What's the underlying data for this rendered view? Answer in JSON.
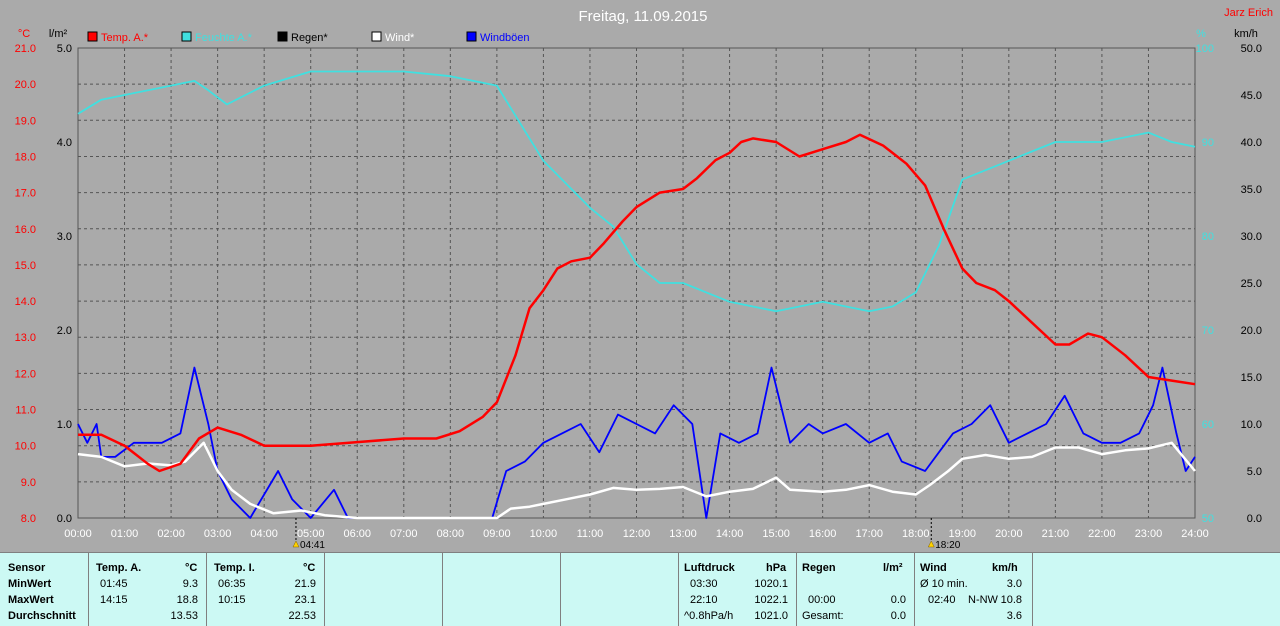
{
  "title": "Freitag, 11.09.2015",
  "author": "Jarz Erich",
  "colors": {
    "temp": "#ff0000",
    "humidity": "#40e0e0",
    "rain": "#000000",
    "wind": "#ffffff",
    "gusts": "#0000ff",
    "bg": "#aaaaaa",
    "table": "#ccf9f4"
  },
  "legend": [
    {
      "label": "Temp. A.*",
      "color": "#ff0000"
    },
    {
      "label": "Feuchte A.*",
      "color": "#40e0e0"
    },
    {
      "label": "Regen*",
      "color": "#000000"
    },
    {
      "label": "Wind*",
      "color": "#ffffff"
    },
    {
      "label": "Windböen",
      "color": "#0000ff"
    }
  ],
  "chart_data": {
    "type": "line",
    "title": "Freitag, 11.09.2015",
    "axes": {
      "temp": {
        "unit": "°C",
        "range": [
          8.0,
          21.0
        ],
        "ticks": [
          "8.0",
          "9.0",
          "10.0",
          "11.0",
          "12.0",
          "13.0",
          "14.0",
          "15.0",
          "16.0",
          "17.0",
          "18.0",
          "19.0",
          "20.0",
          "21.0"
        ]
      },
      "rain": {
        "unit": "l/m²",
        "range": [
          0,
          5
        ],
        "ticks": [
          "0.0",
          "1.0",
          "2.0",
          "3.0",
          "4.0",
          "5.0"
        ]
      },
      "humidity": {
        "unit": "%",
        "range": [
          50,
          100
        ],
        "ticks": [
          "50",
          "60",
          "70",
          "80",
          "90",
          "100"
        ]
      },
      "wind": {
        "unit": "km/h",
        "range": [
          0,
          50
        ],
        "ticks": [
          "0.0",
          "5.0",
          "10.0",
          "15.0",
          "20.0",
          "25.0",
          "30.0",
          "35.0",
          "40.0",
          "45.0",
          "50.0"
        ]
      }
    },
    "x_ticks": [
      "00:00",
      "01:00",
      "02:00",
      "03:00",
      "04:00",
      "05:00",
      "06:00",
      "07:00",
      "08:00",
      "09:00",
      "10:00",
      "11:00",
      "12:00",
      "13:00",
      "14:00",
      "15:00",
      "16:00",
      "17:00",
      "18:00",
      "19:00",
      "20:00",
      "21:00",
      "22:00",
      "23:00",
      "24:00"
    ],
    "sunrise": "04:41",
    "sunset": "18:20",
    "grid": true,
    "series": [
      {
        "name": "Temp. A.*",
        "axis": "temp",
        "color": "#ff0000",
        "points": [
          [
            0,
            10.3
          ],
          [
            0.5,
            10.3
          ],
          [
            1,
            10.0
          ],
          [
            1.5,
            9.5
          ],
          [
            1.75,
            9.3
          ],
          [
            2.2,
            9.5
          ],
          [
            2.6,
            10.2
          ],
          [
            3.0,
            10.5
          ],
          [
            3.5,
            10.3
          ],
          [
            4.0,
            10.0
          ],
          [
            4.5,
            10.0
          ],
          [
            5.0,
            10.0
          ],
          [
            6,
            10.1
          ],
          [
            7,
            10.2
          ],
          [
            7.7,
            10.2
          ],
          [
            8.2,
            10.4
          ],
          [
            8.7,
            10.8
          ],
          [
            9.0,
            11.2
          ],
          [
            9.4,
            12.5
          ],
          [
            9.7,
            13.8
          ],
          [
            10.0,
            14.3
          ],
          [
            10.3,
            14.9
          ],
          [
            10.6,
            15.1
          ],
          [
            11.0,
            15.2
          ],
          [
            11.3,
            15.6
          ],
          [
            11.7,
            16.2
          ],
          [
            12.0,
            16.6
          ],
          [
            12.5,
            17.0
          ],
          [
            13.0,
            17.1
          ],
          [
            13.3,
            17.4
          ],
          [
            13.7,
            17.9
          ],
          [
            14.0,
            18.1
          ],
          [
            14.25,
            18.4
          ],
          [
            14.5,
            18.5
          ],
          [
            15.0,
            18.4
          ],
          [
            15.5,
            18.0
          ],
          [
            16.0,
            18.2
          ],
          [
            16.5,
            18.4
          ],
          [
            16.8,
            18.6
          ],
          [
            17.3,
            18.3
          ],
          [
            17.8,
            17.8
          ],
          [
            18.2,
            17.2
          ],
          [
            18.6,
            16.0
          ],
          [
            19.0,
            14.9
          ],
          [
            19.3,
            14.5
          ],
          [
            19.7,
            14.3
          ],
          [
            20.0,
            14.0
          ],
          [
            20.5,
            13.4
          ],
          [
            21.0,
            12.8
          ],
          [
            21.3,
            12.8
          ],
          [
            21.7,
            13.1
          ],
          [
            22.0,
            13.0
          ],
          [
            22.5,
            12.5
          ],
          [
            23.0,
            11.9
          ],
          [
            23.5,
            11.8
          ],
          [
            24,
            11.7
          ]
        ]
      },
      {
        "name": "Feuchte A.*",
        "axis": "humidity",
        "color": "#40e0e0",
        "points": [
          [
            0,
            93
          ],
          [
            0.5,
            94.5
          ],
          [
            1,
            95
          ],
          [
            2,
            96
          ],
          [
            2.5,
            96.5
          ],
          [
            2.8,
            95.5
          ],
          [
            3.2,
            94
          ],
          [
            3.6,
            95
          ],
          [
            4,
            96
          ],
          [
            5,
            97.5
          ],
          [
            6,
            97.5
          ],
          [
            7,
            97.5
          ],
          [
            8,
            97
          ],
          [
            9,
            96
          ],
          [
            9.5,
            92
          ],
          [
            10,
            88
          ],
          [
            11,
            83
          ],
          [
            11.5,
            81
          ],
          [
            12,
            77
          ],
          [
            12.5,
            75
          ],
          [
            13,
            75
          ],
          [
            13.5,
            74
          ],
          [
            14,
            73
          ],
          [
            15,
            72
          ],
          [
            15.5,
            72.5
          ],
          [
            16,
            73
          ],
          [
            17,
            72
          ],
          [
            17.5,
            72.5
          ],
          [
            18,
            74
          ],
          [
            18.5,
            79
          ],
          [
            19,
            86
          ],
          [
            20,
            88
          ],
          [
            21,
            90
          ],
          [
            22,
            90
          ],
          [
            23,
            91
          ],
          [
            23.5,
            90
          ],
          [
            24,
            89.5
          ]
        ]
      },
      {
        "name": "Wind*",
        "axis": "wind",
        "color": "#ffffff",
        "points": [
          [
            0,
            6.8
          ],
          [
            0.5,
            6.5
          ],
          [
            1,
            5.5
          ],
          [
            1.5,
            5.8
          ],
          [
            2,
            5.6
          ],
          [
            2.3,
            6
          ],
          [
            2.7,
            8
          ],
          [
            3.0,
            5
          ],
          [
            3.3,
            3
          ],
          [
            3.7,
            1.5
          ],
          [
            4.2,
            0.5
          ],
          [
            4.8,
            0.8
          ],
          [
            5.3,
            0.3
          ],
          [
            6,
            0
          ],
          [
            9.0,
            0
          ],
          [
            9.3,
            1.0
          ],
          [
            9.7,
            1.2
          ],
          [
            10,
            1.5
          ],
          [
            10.5,
            2
          ],
          [
            11,
            2.5
          ],
          [
            11.5,
            3.2
          ],
          [
            12,
            3.0
          ],
          [
            12.5,
            3.1
          ],
          [
            13,
            3.3
          ],
          [
            13.5,
            2.3
          ],
          [
            14,
            2.8
          ],
          [
            14.5,
            3.1
          ],
          [
            15,
            4.3
          ],
          [
            15.3,
            3
          ],
          [
            16,
            2.8
          ],
          [
            16.5,
            3.0
          ],
          [
            17,
            3.5
          ],
          [
            17.5,
            2.8
          ],
          [
            18,
            2.5
          ],
          [
            18.3,
            3.5
          ],
          [
            18.7,
            5
          ],
          [
            19,
            6.3
          ],
          [
            19.5,
            6.7
          ],
          [
            20,
            6.3
          ],
          [
            20.5,
            6.5
          ],
          [
            21,
            7.5
          ],
          [
            21.5,
            7.5
          ],
          [
            22,
            6.8
          ],
          [
            22.5,
            7.2
          ],
          [
            23,
            7.4
          ],
          [
            23.5,
            8
          ],
          [
            24,
            5
          ]
        ]
      },
      {
        "name": "Windböen",
        "axis": "wind",
        "color": "#0000ff",
        "points": [
          [
            0,
            10
          ],
          [
            0.2,
            8
          ],
          [
            0.4,
            10
          ],
          [
            0.5,
            6.5
          ],
          [
            0.8,
            6.5
          ],
          [
            1.2,
            8
          ],
          [
            1.8,
            8
          ],
          [
            2.2,
            9
          ],
          [
            2.5,
            16
          ],
          [
            2.8,
            10
          ],
          [
            3.0,
            5
          ],
          [
            3.3,
            2
          ],
          [
            3.7,
            0
          ],
          [
            4.3,
            5
          ],
          [
            4.6,
            2
          ],
          [
            5.0,
            0
          ],
          [
            5.5,
            3
          ],
          [
            5.8,
            0
          ],
          [
            8.9,
            0
          ],
          [
            9.2,
            5
          ],
          [
            9.6,
            6
          ],
          [
            10,
            8
          ],
          [
            10.4,
            9
          ],
          [
            10.8,
            10
          ],
          [
            11.2,
            7
          ],
          [
            11.6,
            11
          ],
          [
            12,
            10
          ],
          [
            12.4,
            9
          ],
          [
            12.8,
            12
          ],
          [
            13.2,
            10
          ],
          [
            13.5,
            0
          ],
          [
            13.8,
            9
          ],
          [
            14.2,
            8
          ],
          [
            14.6,
            9
          ],
          [
            14.9,
            16
          ],
          [
            15.3,
            8
          ],
          [
            15.7,
            10
          ],
          [
            16,
            9
          ],
          [
            16.5,
            10
          ],
          [
            17,
            8
          ],
          [
            17.4,
            9
          ],
          [
            17.7,
            6
          ],
          [
            18.2,
            5
          ],
          [
            18.5,
            7
          ],
          [
            18.8,
            9
          ],
          [
            19.2,
            10
          ],
          [
            19.6,
            12
          ],
          [
            20,
            8
          ],
          [
            20.4,
            9
          ],
          [
            20.8,
            10
          ],
          [
            21.2,
            13
          ],
          [
            21.6,
            9
          ],
          [
            22,
            8
          ],
          [
            22.4,
            8
          ],
          [
            22.8,
            9
          ],
          [
            23.1,
            12
          ],
          [
            23.3,
            16
          ],
          [
            23.6,
            9
          ],
          [
            23.8,
            5
          ],
          [
            24,
            6.5
          ]
        ]
      }
    ]
  },
  "table": {
    "headers": {
      "sensor": "Sensor",
      "temp_a": "Temp. A.",
      "temp_a_unit": "°C",
      "temp_i": "Temp. I.",
      "temp_i_unit": "°C",
      "pressure": "Luftdruck",
      "pressure_unit": "hPa",
      "rain": "Regen",
      "rain_unit": "l/m²",
      "wind": "Wind",
      "wind_unit": "km/h"
    },
    "rows": [
      {
        "label": "MinWert",
        "ta_time": "01:45",
        "ta_val": "9.3",
        "ti_time": "06:35",
        "ti_val": "21.9",
        "p_time": "03:30",
        "p_val": "1020.1",
        "r_time": "00:00",
        "r_val": "0.0",
        "w_label": "Ø 10 min.",
        "w_dir": "",
        "w_val": "3.0"
      },
      {
        "label": "MaxWert",
        "ta_time": "14:15",
        "ta_val": "18.8",
        "ti_time": "10:15",
        "ti_val": "23.1",
        "p_time": "22:10",
        "p_val": "1022.1",
        "r_time": "",
        "r_val": "0.0",
        "w_label": "02:40",
        "w_dir": "N-NW",
        "w_val": "10.8"
      },
      {
        "label": "Durchschnitt",
        "ta_time": "",
        "ta_val": "13.53",
        "ti_time": "",
        "ti_val": "22.53",
        "p_time": "^0.8hPa/h",
        "p_val": "1021.0",
        "r_time": "Gesamt:",
        "r_val": "0.0",
        "w_label": "",
        "w_dir": "",
        "w_val": "3.6"
      }
    ]
  }
}
